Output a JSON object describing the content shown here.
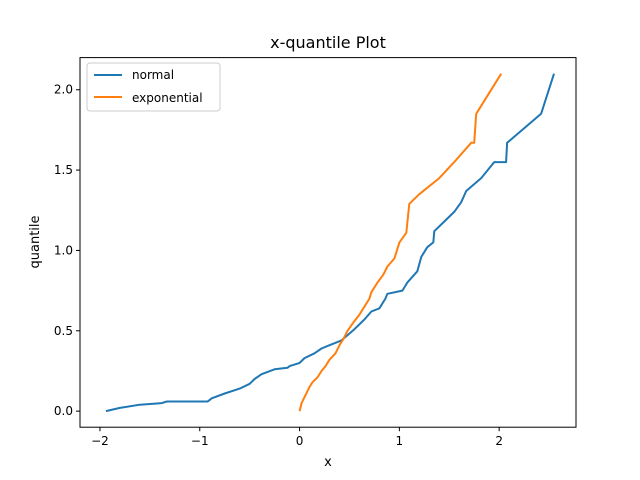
{
  "chart_data": {
    "type": "line",
    "title": "x-quantile Plot",
    "xlabel": "x",
    "ylabel": "quantile",
    "xlim": [
      -2.2,
      2.77
    ],
    "ylim": [
      -0.1,
      2.2
    ],
    "xticks": [
      -2,
      -1,
      0,
      1,
      2
    ],
    "xtick_labels": [
      "−2",
      "−1",
      "0",
      "1",
      "2"
    ],
    "yticks": [
      0.0,
      0.5,
      1.0,
      1.5,
      2.0
    ],
    "ytick_labels": [
      "0.0",
      "0.5",
      "1.0",
      "1.5",
      "2.0"
    ],
    "grid": false,
    "legend_position": "top-left",
    "series": [
      {
        "name": "normal",
        "color": "#1f77b4",
        "x": [
          -1.94,
          -1.8,
          -1.6,
          -1.38,
          -1.33,
          -0.92,
          -0.88,
          -0.75,
          -0.6,
          -0.5,
          -0.45,
          -0.38,
          -0.25,
          -0.12,
          -0.1,
          0.0,
          0.05,
          0.15,
          0.22,
          0.3,
          0.42,
          0.55,
          0.65,
          0.72,
          0.8,
          0.86,
          0.88,
          1.03,
          1.08,
          1.18,
          1.22,
          1.28,
          1.34,
          1.35,
          1.45,
          1.55,
          1.62,
          1.67,
          1.82,
          1.95,
          2.07,
          2.08,
          2.42,
          2.55
        ],
        "values": [
          0.0,
          0.02,
          0.04,
          0.05,
          0.06,
          0.06,
          0.08,
          0.11,
          0.14,
          0.17,
          0.2,
          0.23,
          0.26,
          0.27,
          0.28,
          0.3,
          0.33,
          0.36,
          0.39,
          0.41,
          0.44,
          0.51,
          0.57,
          0.62,
          0.64,
          0.7,
          0.73,
          0.75,
          0.8,
          0.87,
          0.96,
          1.02,
          1.05,
          1.12,
          1.18,
          1.24,
          1.3,
          1.37,
          1.45,
          1.55,
          1.55,
          1.67,
          1.85,
          2.1
        ]
      },
      {
        "name": "exponential",
        "color": "#ff7f0e",
        "x": [
          0.0,
          0.02,
          0.06,
          0.1,
          0.13,
          0.18,
          0.22,
          0.26,
          0.3,
          0.36,
          0.4,
          0.44,
          0.48,
          0.55,
          0.6,
          0.7,
          0.72,
          0.78,
          0.84,
          0.88,
          0.95,
          1.0,
          1.07,
          1.1,
          1.2,
          1.4,
          1.55,
          1.72,
          1.75,
          1.77,
          2.02
        ],
        "values": [
          0.0,
          0.05,
          0.1,
          0.15,
          0.18,
          0.21,
          0.25,
          0.28,
          0.32,
          0.36,
          0.41,
          0.45,
          0.5,
          0.56,
          0.6,
          0.7,
          0.74,
          0.8,
          0.85,
          0.9,
          0.95,
          1.05,
          1.11,
          1.29,
          1.35,
          1.45,
          1.55,
          1.67,
          1.67,
          1.85,
          2.1
        ]
      }
    ]
  }
}
